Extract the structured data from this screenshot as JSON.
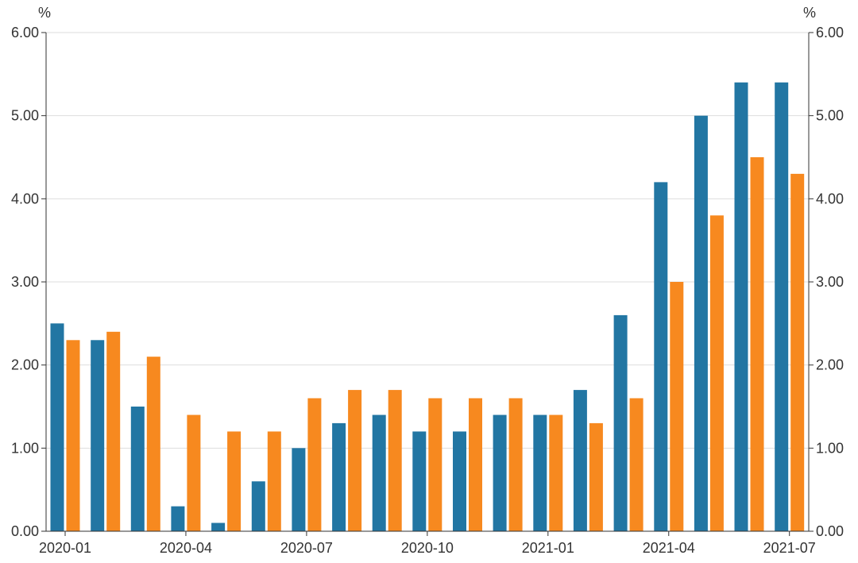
{
  "chart_data": {
    "type": "bar",
    "y_unit_left": "%",
    "y_unit_right": "%",
    "categories": [
      "2020-01",
      "2020-02",
      "2020-03",
      "2020-04",
      "2020-05",
      "2020-06",
      "2020-07",
      "2020-08",
      "2020-09",
      "2020-10",
      "2020-11",
      "2020-12",
      "2021-01",
      "2021-02",
      "2021-03",
      "2021-04",
      "2021-05",
      "2021-06",
      "2021-07"
    ],
    "x_tick_labels": [
      "2020-01",
      "2020-04",
      "2020-07",
      "2020-10",
      "2021-01",
      "2021-04",
      "2021-07"
    ],
    "y_tick_labels": [
      "0.00",
      "1.00",
      "2.00",
      "3.00",
      "4.00",
      "5.00",
      "6.00"
    ],
    "ylim": [
      0,
      6
    ],
    "grid": true,
    "legend": "none",
    "series": [
      {
        "color": "#2276a3",
        "values": [
          2.5,
          2.3,
          1.5,
          0.3,
          0.1,
          0.6,
          1.0,
          1.3,
          1.4,
          1.2,
          1.2,
          1.4,
          1.4,
          1.7,
          2.6,
          4.2,
          5.0,
          5.4,
          5.4
        ]
      },
      {
        "color": "#f7891f",
        "values": [
          2.3,
          2.4,
          2.1,
          1.4,
          1.2,
          1.2,
          1.6,
          1.7,
          1.7,
          1.6,
          1.6,
          1.6,
          1.4,
          1.3,
          1.6,
          3.0,
          3.8,
          4.5,
          4.3
        ]
      }
    ]
  }
}
